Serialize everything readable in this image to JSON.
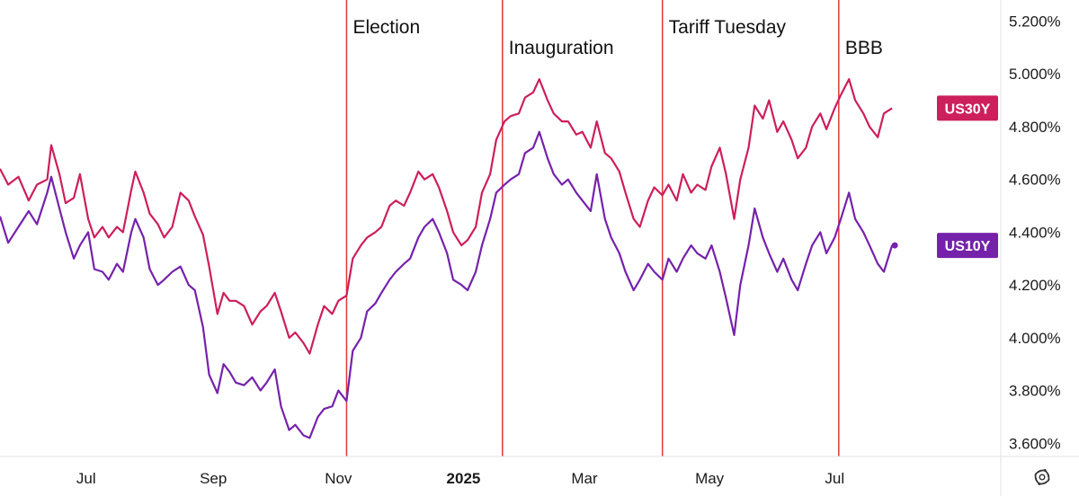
{
  "chart_data": {
    "type": "line",
    "title": "",
    "xlabel": "",
    "ylabel": "",
    "x_ticks": [
      {
        "label": "Jul",
        "date": "2024-07-01"
      },
      {
        "label": "Sep",
        "date": "2024-09-01"
      },
      {
        "label": "Nov",
        "date": "2024-11-01"
      },
      {
        "label": "2025",
        "date": "2025-01-01",
        "bold": true
      },
      {
        "label": "Mar",
        "date": "2025-03-01"
      },
      {
        "label": "May",
        "date": "2025-05-01"
      },
      {
        "label": "Jul",
        "date": "2025-07-01"
      }
    ],
    "y_ticks": [
      "3.600%",
      "3.800%",
      "4.000%",
      "4.200%",
      "4.400%",
      "4.600%",
      "4.800%",
      "5.000%",
      "5.200%"
    ],
    "ylim": [
      3.55,
      5.28
    ],
    "xlim": [
      "2024-05-20",
      "2025-09-20"
    ],
    "events": [
      {
        "label": "Election",
        "date": "2024-11-05"
      },
      {
        "label": "Inauguration",
        "date": "2025-01-20"
      },
      {
        "label": "Tariff Tuesday",
        "date": "2025-04-08"
      },
      {
        "label": "BBB",
        "date": "2025-07-03"
      }
    ],
    "event_color": "#e0363b",
    "series": [
      {
        "name": "US30Y",
        "color": "#cc1f5b",
        "last_value": 4.87,
        "points": [
          [
            "2024-05-20",
            4.64
          ],
          [
            "2024-05-24",
            4.58
          ],
          [
            "2024-05-29",
            4.61
          ],
          [
            "2024-06-03",
            4.52
          ],
          [
            "2024-06-07",
            4.58
          ],
          [
            "2024-06-12",
            4.6
          ],
          [
            "2024-06-14",
            4.73
          ],
          [
            "2024-06-18",
            4.62
          ],
          [
            "2024-06-21",
            4.51
          ],
          [
            "2024-06-25",
            4.53
          ],
          [
            "2024-06-28",
            4.62
          ],
          [
            "2024-07-02",
            4.45
          ],
          [
            "2024-07-05",
            4.38
          ],
          [
            "2024-07-09",
            4.42
          ],
          [
            "2024-07-12",
            4.38
          ],
          [
            "2024-07-16",
            4.42
          ],
          [
            "2024-07-19",
            4.4
          ],
          [
            "2024-07-23",
            4.56
          ],
          [
            "2024-07-25",
            4.63
          ],
          [
            "2024-07-29",
            4.55
          ],
          [
            "2024-08-01",
            4.47
          ],
          [
            "2024-08-05",
            4.43
          ],
          [
            "2024-08-08",
            4.38
          ],
          [
            "2024-08-12",
            4.42
          ],
          [
            "2024-08-16",
            4.55
          ],
          [
            "2024-08-20",
            4.52
          ],
          [
            "2024-08-23",
            4.46
          ],
          [
            "2024-08-27",
            4.39
          ],
          [
            "2024-08-30",
            4.27
          ],
          [
            "2024-09-03",
            4.09
          ],
          [
            "2024-09-06",
            4.17
          ],
          [
            "2024-09-09",
            4.14
          ],
          [
            "2024-09-12",
            4.14
          ],
          [
            "2024-09-16",
            4.12
          ],
          [
            "2024-09-20",
            4.05
          ],
          [
            "2024-09-24",
            4.1
          ],
          [
            "2024-09-27",
            4.12
          ],
          [
            "2024-10-01",
            4.17
          ],
          [
            "2024-10-04",
            4.1
          ],
          [
            "2024-10-08",
            4.0
          ],
          [
            "2024-10-11",
            4.02
          ],
          [
            "2024-10-15",
            3.98
          ],
          [
            "2024-10-18",
            3.94
          ],
          [
            "2024-10-22",
            4.05
          ],
          [
            "2024-10-25",
            4.12
          ],
          [
            "2024-10-29",
            4.09
          ],
          [
            "2024-11-01",
            4.14
          ],
          [
            "2024-11-05",
            4.16
          ],
          [
            "2024-11-08",
            4.3
          ],
          [
            "2024-11-12",
            4.35
          ],
          [
            "2024-11-15",
            4.38
          ],
          [
            "2024-11-19",
            4.4
          ],
          [
            "2024-11-22",
            4.42
          ],
          [
            "2024-11-26",
            4.5
          ],
          [
            "2024-11-29",
            4.52
          ],
          [
            "2024-12-03",
            4.5
          ],
          [
            "2024-12-06",
            4.55
          ],
          [
            "2024-12-10",
            4.63
          ],
          [
            "2024-12-13",
            4.6
          ],
          [
            "2024-12-17",
            4.62
          ],
          [
            "2024-12-20",
            4.57
          ],
          [
            "2024-12-24",
            4.48
          ],
          [
            "2024-12-27",
            4.4
          ],
          [
            "2024-12-31",
            4.35
          ],
          [
            "2025-01-03",
            4.37
          ],
          [
            "2025-01-07",
            4.42
          ],
          [
            "2025-01-10",
            4.55
          ],
          [
            "2025-01-14",
            4.62
          ],
          [
            "2025-01-17",
            4.75
          ],
          [
            "2025-01-21",
            4.82
          ],
          [
            "2025-01-24",
            4.84
          ],
          [
            "2025-01-28",
            4.85
          ],
          [
            "2025-01-31",
            4.91
          ],
          [
            "2025-02-04",
            4.93
          ],
          [
            "2025-02-07",
            4.98
          ],
          [
            "2025-02-11",
            4.9
          ],
          [
            "2025-02-14",
            4.85
          ],
          [
            "2025-02-18",
            4.82
          ],
          [
            "2025-02-21",
            4.82
          ],
          [
            "2025-02-25",
            4.77
          ],
          [
            "2025-02-28",
            4.78
          ],
          [
            "2025-03-04",
            4.72
          ],
          [
            "2025-03-07",
            4.82
          ],
          [
            "2025-03-11",
            4.7
          ],
          [
            "2025-03-14",
            4.68
          ],
          [
            "2025-03-18",
            4.63
          ],
          [
            "2025-03-21",
            4.55
          ],
          [
            "2025-03-25",
            4.45
          ],
          [
            "2025-03-28",
            4.42
          ],
          [
            "2025-04-01",
            4.52
          ],
          [
            "2025-04-04",
            4.57
          ],
          [
            "2025-04-08",
            4.54
          ],
          [
            "2025-04-11",
            4.58
          ],
          [
            "2025-04-15",
            4.52
          ],
          [
            "2025-04-18",
            4.62
          ],
          [
            "2025-04-22",
            4.55
          ],
          [
            "2025-04-25",
            4.58
          ],
          [
            "2025-04-29",
            4.56
          ],
          [
            "2025-05-02",
            4.65
          ],
          [
            "2025-05-06",
            4.72
          ],
          [
            "2025-05-09",
            4.62
          ],
          [
            "2025-05-13",
            4.45
          ],
          [
            "2025-05-16",
            4.6
          ],
          [
            "2025-05-20",
            4.72
          ],
          [
            "2025-05-23",
            4.88
          ],
          [
            "2025-05-27",
            4.83
          ],
          [
            "2025-05-30",
            4.9
          ],
          [
            "2025-06-03",
            4.78
          ],
          [
            "2025-06-06",
            4.82
          ],
          [
            "2025-06-10",
            4.75
          ],
          [
            "2025-06-13",
            4.68
          ],
          [
            "2025-06-17",
            4.72
          ],
          [
            "2025-06-20",
            4.8
          ],
          [
            "2025-06-24",
            4.85
          ],
          [
            "2025-06-27",
            4.79
          ],
          [
            "2025-07-01",
            4.87
          ],
          [
            "2025-07-04",
            4.92
          ],
          [
            "2025-07-08",
            4.98
          ],
          [
            "2025-07-11",
            4.9
          ],
          [
            "2025-07-15",
            4.85
          ],
          [
            "2025-07-18",
            4.8
          ],
          [
            "2025-07-22",
            4.76
          ],
          [
            "2025-07-25",
            4.85
          ],
          [
            "2025-07-29",
            4.87
          ]
        ]
      },
      {
        "name": "US10Y",
        "color": "#7522ab",
        "last_value": 4.35,
        "points": [
          [
            "2024-05-20",
            4.46
          ],
          [
            "2024-05-24",
            4.36
          ],
          [
            "2024-05-29",
            4.42
          ],
          [
            "2024-06-03",
            4.48
          ],
          [
            "2024-06-07",
            4.43
          ],
          [
            "2024-06-12",
            4.55
          ],
          [
            "2024-06-14",
            4.61
          ],
          [
            "2024-06-18",
            4.49
          ],
          [
            "2024-06-21",
            4.4
          ],
          [
            "2024-06-25",
            4.3
          ],
          [
            "2024-06-28",
            4.35
          ],
          [
            "2024-07-02",
            4.4
          ],
          [
            "2024-07-05",
            4.26
          ],
          [
            "2024-07-09",
            4.25
          ],
          [
            "2024-07-12",
            4.22
          ],
          [
            "2024-07-16",
            4.28
          ],
          [
            "2024-07-19",
            4.25
          ],
          [
            "2024-07-23",
            4.4
          ],
          [
            "2024-07-25",
            4.45
          ],
          [
            "2024-07-29",
            4.38
          ],
          [
            "2024-08-01",
            4.26
          ],
          [
            "2024-08-05",
            4.2
          ],
          [
            "2024-08-08",
            4.22
          ],
          [
            "2024-08-12",
            4.25
          ],
          [
            "2024-08-16",
            4.27
          ],
          [
            "2024-08-20",
            4.2
          ],
          [
            "2024-08-23",
            4.18
          ],
          [
            "2024-08-27",
            4.04
          ],
          [
            "2024-08-30",
            3.86
          ],
          [
            "2024-09-03",
            3.79
          ],
          [
            "2024-09-06",
            3.9
          ],
          [
            "2024-09-09",
            3.87
          ],
          [
            "2024-09-12",
            3.83
          ],
          [
            "2024-09-16",
            3.82
          ],
          [
            "2024-09-20",
            3.85
          ],
          [
            "2024-09-24",
            3.8
          ],
          [
            "2024-09-27",
            3.83
          ],
          [
            "2024-10-01",
            3.88
          ],
          [
            "2024-10-04",
            3.74
          ],
          [
            "2024-10-08",
            3.65
          ],
          [
            "2024-10-11",
            3.67
          ],
          [
            "2024-10-15",
            3.63
          ],
          [
            "2024-10-18",
            3.62
          ],
          [
            "2024-10-22",
            3.7
          ],
          [
            "2024-10-25",
            3.73
          ],
          [
            "2024-10-29",
            3.74
          ],
          [
            "2024-11-01",
            3.8
          ],
          [
            "2024-11-05",
            3.76
          ],
          [
            "2024-11-08",
            3.95
          ],
          [
            "2024-11-12",
            4.0
          ],
          [
            "2024-11-15",
            4.1
          ],
          [
            "2024-11-19",
            4.13
          ],
          [
            "2024-11-22",
            4.17
          ],
          [
            "2024-11-26",
            4.22
          ],
          [
            "2024-11-29",
            4.25
          ],
          [
            "2024-12-03",
            4.28
          ],
          [
            "2024-12-06",
            4.3
          ],
          [
            "2024-12-10",
            4.38
          ],
          [
            "2024-12-13",
            4.42
          ],
          [
            "2024-12-17",
            4.45
          ],
          [
            "2024-12-20",
            4.4
          ],
          [
            "2024-12-24",
            4.32
          ],
          [
            "2024-12-27",
            4.22
          ],
          [
            "2024-12-31",
            4.2
          ],
          [
            "2025-01-03",
            4.18
          ],
          [
            "2025-01-07",
            4.25
          ],
          [
            "2025-01-10",
            4.35
          ],
          [
            "2025-01-14",
            4.45
          ],
          [
            "2025-01-17",
            4.55
          ],
          [
            "2025-01-21",
            4.58
          ],
          [
            "2025-01-24",
            4.6
          ],
          [
            "2025-01-28",
            4.62
          ],
          [
            "2025-01-31",
            4.7
          ],
          [
            "2025-02-04",
            4.72
          ],
          [
            "2025-02-07",
            4.78
          ],
          [
            "2025-02-11",
            4.68
          ],
          [
            "2025-02-14",
            4.62
          ],
          [
            "2025-02-18",
            4.58
          ],
          [
            "2025-02-21",
            4.6
          ],
          [
            "2025-02-25",
            4.55
          ],
          [
            "2025-02-28",
            4.52
          ],
          [
            "2025-03-04",
            4.48
          ],
          [
            "2025-03-07",
            4.62
          ],
          [
            "2025-03-11",
            4.45
          ],
          [
            "2025-03-14",
            4.38
          ],
          [
            "2025-03-18",
            4.32
          ],
          [
            "2025-03-21",
            4.25
          ],
          [
            "2025-03-25",
            4.18
          ],
          [
            "2025-03-28",
            4.22
          ],
          [
            "2025-04-01",
            4.28
          ],
          [
            "2025-04-04",
            4.25
          ],
          [
            "2025-04-08",
            4.22
          ],
          [
            "2025-04-11",
            4.3
          ],
          [
            "2025-04-15",
            4.25
          ],
          [
            "2025-04-18",
            4.3
          ],
          [
            "2025-04-22",
            4.35
          ],
          [
            "2025-04-25",
            4.32
          ],
          [
            "2025-04-29",
            4.3
          ],
          [
            "2025-05-02",
            4.35
          ],
          [
            "2025-05-06",
            4.25
          ],
          [
            "2025-05-09",
            4.15
          ],
          [
            "2025-05-13",
            4.01
          ],
          [
            "2025-05-16",
            4.2
          ],
          [
            "2025-05-20",
            4.35
          ],
          [
            "2025-05-23",
            4.49
          ],
          [
            "2025-05-27",
            4.38
          ],
          [
            "2025-05-30",
            4.32
          ],
          [
            "2025-06-03",
            4.25
          ],
          [
            "2025-06-06",
            4.3
          ],
          [
            "2025-06-10",
            4.22
          ],
          [
            "2025-06-13",
            4.18
          ],
          [
            "2025-06-17",
            4.28
          ],
          [
            "2025-06-20",
            4.35
          ],
          [
            "2025-06-24",
            4.4
          ],
          [
            "2025-06-27",
            4.32
          ],
          [
            "2025-07-01",
            4.38
          ],
          [
            "2025-07-04",
            4.45
          ],
          [
            "2025-07-08",
            4.55
          ],
          [
            "2025-07-11",
            4.45
          ],
          [
            "2025-07-15",
            4.4
          ],
          [
            "2025-07-18",
            4.35
          ],
          [
            "2025-07-22",
            4.28
          ],
          [
            "2025-07-25",
            4.25
          ],
          [
            "2025-07-29",
            4.35
          ]
        ]
      }
    ]
  },
  "icons": {
    "settings": "gear-icon"
  }
}
